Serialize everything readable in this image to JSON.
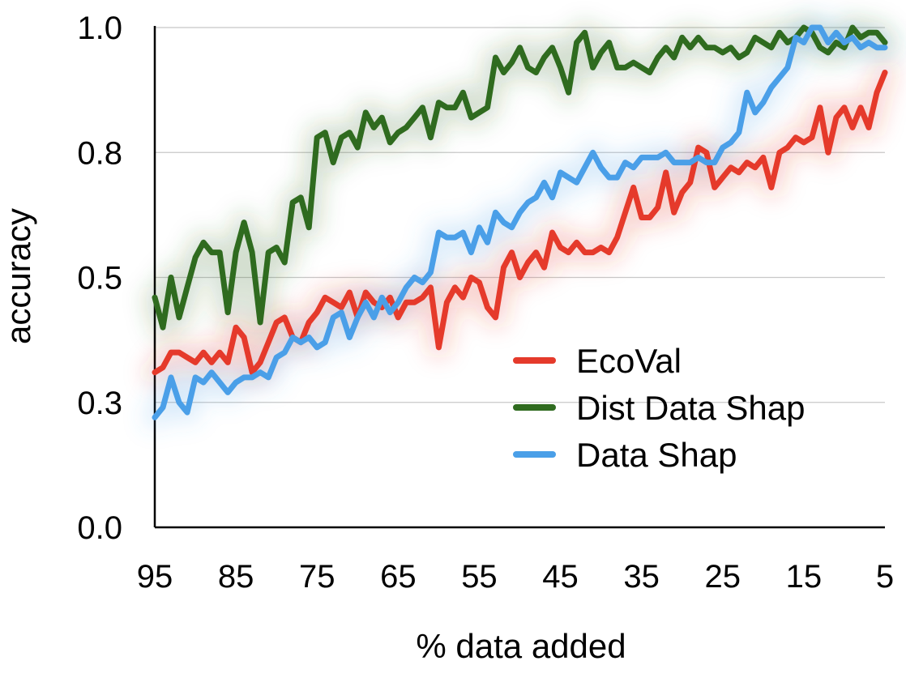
{
  "chart_data": {
    "type": "line",
    "title": "",
    "xlabel": "% data added",
    "ylabel": "accuracy",
    "xlim": [
      95,
      5
    ],
    "ylim": [
      0.0,
      1.0
    ],
    "x_reversed": true,
    "x_ticks": [
      "95",
      "85",
      "75",
      "65",
      "55",
      "45",
      "35",
      "25",
      "15",
      "5"
    ],
    "y_ticks": [
      "0.0",
      "0.3",
      "0.5",
      "0.8",
      "1.0"
    ],
    "grid": true,
    "legend_position": "right-middle",
    "x": [
      95,
      94,
      93,
      92,
      91,
      90,
      89,
      88,
      87,
      86,
      85,
      84,
      83,
      82,
      81,
      80,
      79,
      78,
      77,
      76,
      75,
      74,
      73,
      72,
      71,
      70,
      69,
      68,
      67,
      66,
      65,
      64,
      63,
      62,
      61,
      60,
      59,
      58,
      57,
      56,
      55,
      54,
      53,
      52,
      51,
      50,
      49,
      48,
      47,
      46,
      45,
      44,
      43,
      42,
      41,
      40,
      39,
      38,
      37,
      36,
      35,
      34,
      33,
      32,
      31,
      30,
      29,
      28,
      27,
      26,
      25,
      24,
      23,
      22,
      21,
      20,
      19,
      18,
      17,
      16,
      15,
      14,
      13,
      12,
      11,
      10,
      9,
      8,
      7,
      6,
      5
    ],
    "series": [
      {
        "name": "EcoVal",
        "color": "#e53a2b",
        "values": [
          0.31,
          0.32,
          0.35,
          0.35,
          0.34,
          0.33,
          0.35,
          0.33,
          0.35,
          0.33,
          0.4,
          0.38,
          0.31,
          0.33,
          0.37,
          0.41,
          0.42,
          0.38,
          0.37,
          0.41,
          0.43,
          0.46,
          0.45,
          0.44,
          0.47,
          0.42,
          0.47,
          0.45,
          0.44,
          0.46,
          0.42,
          0.45,
          0.45,
          0.46,
          0.48,
          0.36,
          0.45,
          0.48,
          0.46,
          0.5,
          0.49,
          0.44,
          0.42,
          0.52,
          0.55,
          0.5,
          0.53,
          0.55,
          0.52,
          0.59,
          0.56,
          0.55,
          0.57,
          0.55,
          0.55,
          0.56,
          0.55,
          0.58,
          0.63,
          0.68,
          0.62,
          0.62,
          0.64,
          0.71,
          0.63,
          0.67,
          0.69,
          0.76,
          0.75,
          0.68,
          0.7,
          0.72,
          0.71,
          0.73,
          0.72,
          0.74,
          0.68,
          0.75,
          0.76,
          0.78,
          0.77,
          0.78,
          0.84,
          0.75,
          0.82,
          0.84,
          0.8,
          0.84,
          0.8,
          0.87,
          0.91
        ]
      },
      {
        "name": "Dist Data Shap",
        "color": "#2f6b1f",
        "values": [
          0.46,
          0.4,
          0.5,
          0.42,
          0.48,
          0.54,
          0.57,
          0.55,
          0.55,
          0.43,
          0.55,
          0.61,
          0.55,
          0.41,
          0.55,
          0.56,
          0.53,
          0.65,
          0.66,
          0.6,
          0.78,
          0.79,
          0.73,
          0.78,
          0.79,
          0.76,
          0.83,
          0.8,
          0.82,
          0.77,
          0.79,
          0.8,
          0.82,
          0.84,
          0.78,
          0.85,
          0.84,
          0.84,
          0.87,
          0.82,
          0.83,
          0.84,
          0.94,
          0.91,
          0.93,
          0.96,
          0.92,
          0.91,
          0.94,
          0.96,
          0.92,
          0.87,
          0.97,
          0.99,
          0.92,
          0.95,
          0.97,
          0.92,
          0.92,
          0.93,
          0.92,
          0.91,
          0.94,
          0.96,
          0.94,
          0.98,
          0.96,
          0.98,
          0.96,
          0.96,
          0.95,
          0.96,
          0.94,
          0.95,
          0.98,
          0.97,
          0.96,
          0.99,
          0.97,
          0.98,
          1.0,
          0.99,
          0.96,
          0.95,
          0.97,
          0.96,
          1.0,
          0.98,
          0.99,
          0.99,
          0.97
        ]
      },
      {
        "name": "Data Shap",
        "color": "#4a9fe8",
        "values": [
          0.22,
          0.24,
          0.3,
          0.25,
          0.23,
          0.3,
          0.29,
          0.31,
          0.29,
          0.27,
          0.29,
          0.3,
          0.3,
          0.31,
          0.3,
          0.34,
          0.35,
          0.38,
          0.37,
          0.38,
          0.36,
          0.37,
          0.42,
          0.43,
          0.38,
          0.42,
          0.45,
          0.42,
          0.46,
          0.43,
          0.45,
          0.48,
          0.5,
          0.49,
          0.51,
          0.59,
          0.58,
          0.58,
          0.59,
          0.55,
          0.6,
          0.57,
          0.63,
          0.61,
          0.6,
          0.63,
          0.65,
          0.66,
          0.69,
          0.66,
          0.71,
          0.7,
          0.69,
          0.72,
          0.75,
          0.72,
          0.7,
          0.7,
          0.73,
          0.72,
          0.74,
          0.74,
          0.74,
          0.75,
          0.73,
          0.73,
          0.73,
          0.74,
          0.73,
          0.73,
          0.76,
          0.77,
          0.79,
          0.87,
          0.83,
          0.85,
          0.88,
          0.9,
          0.92,
          0.98,
          0.97,
          1.0,
          1.0,
          0.97,
          0.99,
          0.97,
          0.98,
          0.96,
          0.97,
          0.96,
          0.96
        ]
      }
    ]
  }
}
